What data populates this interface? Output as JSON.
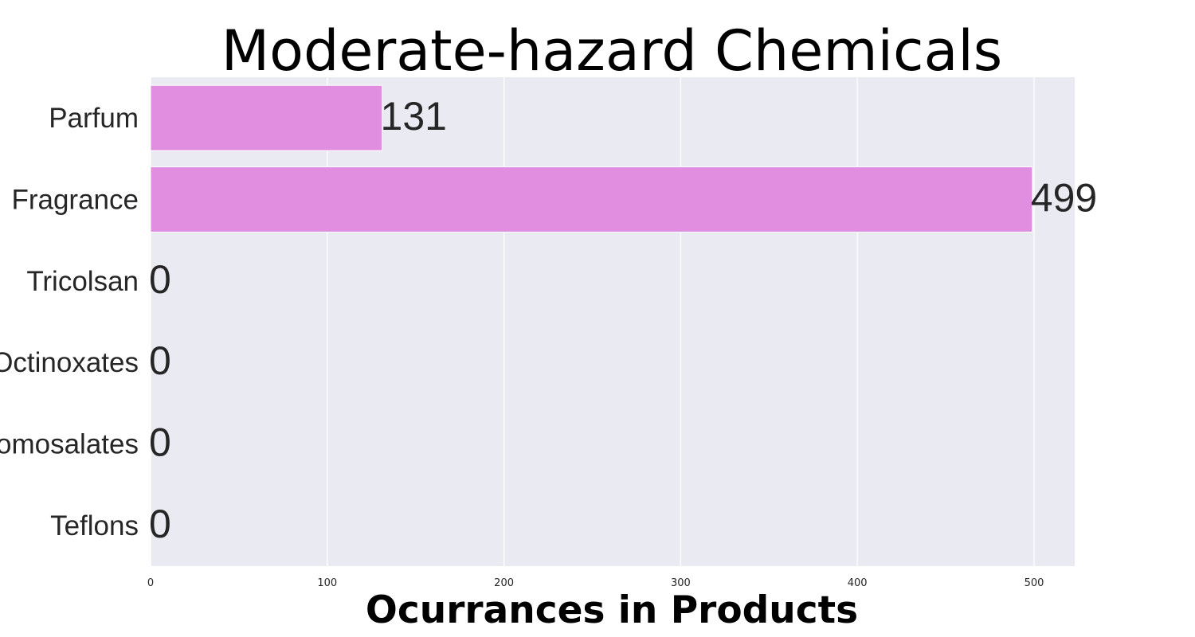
{
  "chart_data": {
    "type": "bar",
    "orientation": "horizontal",
    "title": "Moderate-hazard Chemicals",
    "xlabel": "Ocurrances in Products",
    "ylabel": "",
    "categories": [
      "Parfum",
      "Fragrance",
      "Tricolsan",
      "Octinoxates",
      "Homosalates",
      "Teflons"
    ],
    "values": [
      131,
      499,
      0,
      0,
      0,
      0
    ],
    "xlim": [
      0,
      523
    ],
    "xticks": [
      0,
      100,
      200,
      300,
      400,
      500
    ],
    "grid": true,
    "legend": "none",
    "colors": {
      "bar": "#e18ee1",
      "plot_background": "#eaeaf2",
      "gridline": "#ffffff",
      "text": "#262626"
    }
  }
}
